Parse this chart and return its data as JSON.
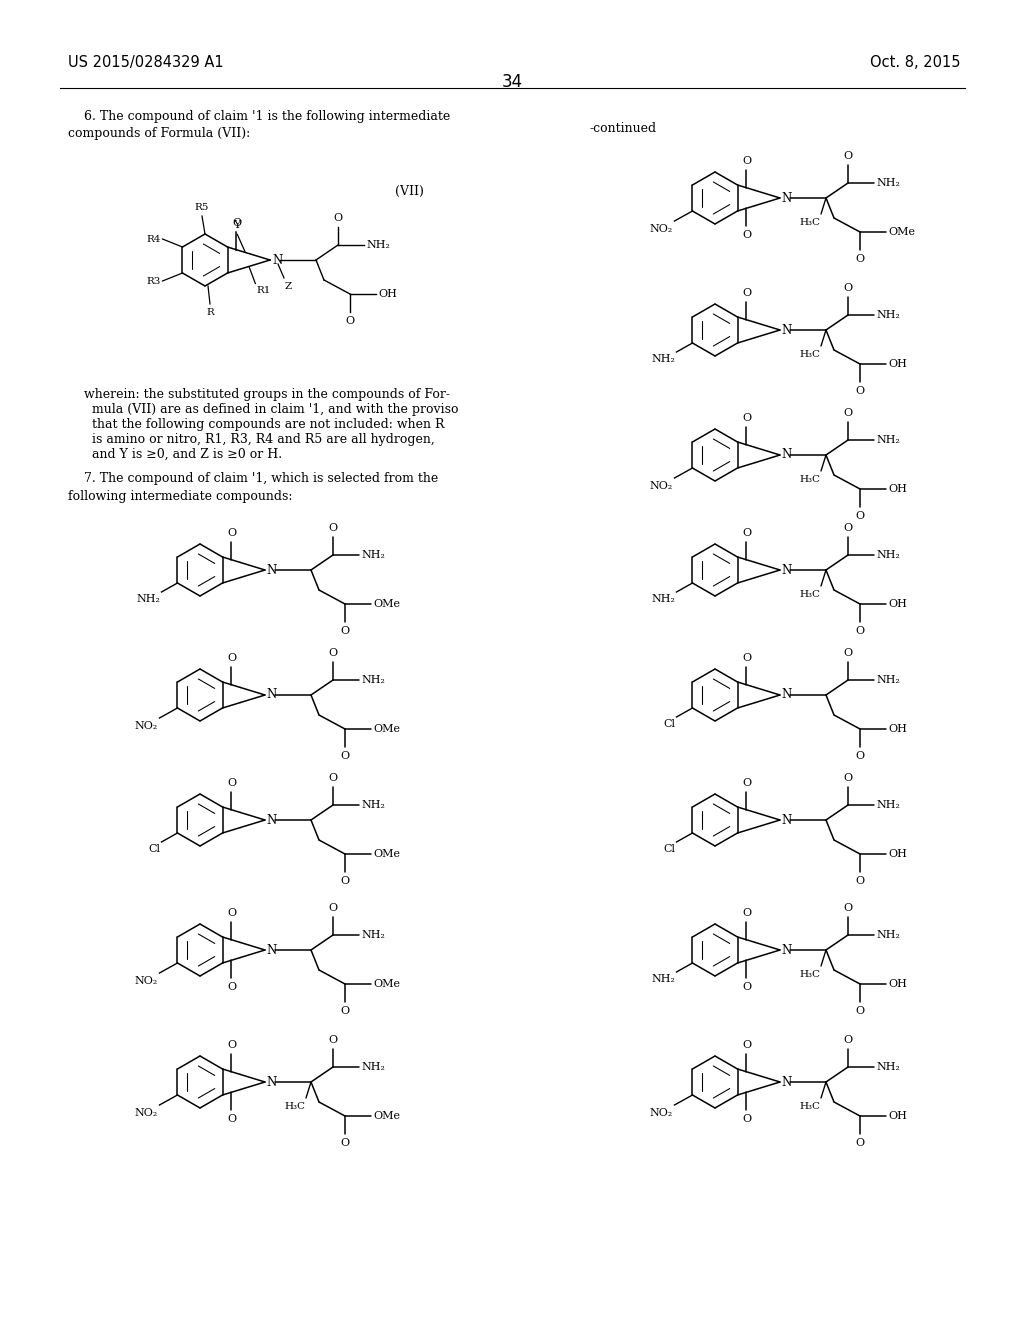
{
  "bg_color": "#ffffff",
  "page_number": "34",
  "header_left": "US 2015/0284329 A1",
  "header_right": "Oct. 8, 2015",
  "text_color": "#000000",
  "continued": "-continued"
}
